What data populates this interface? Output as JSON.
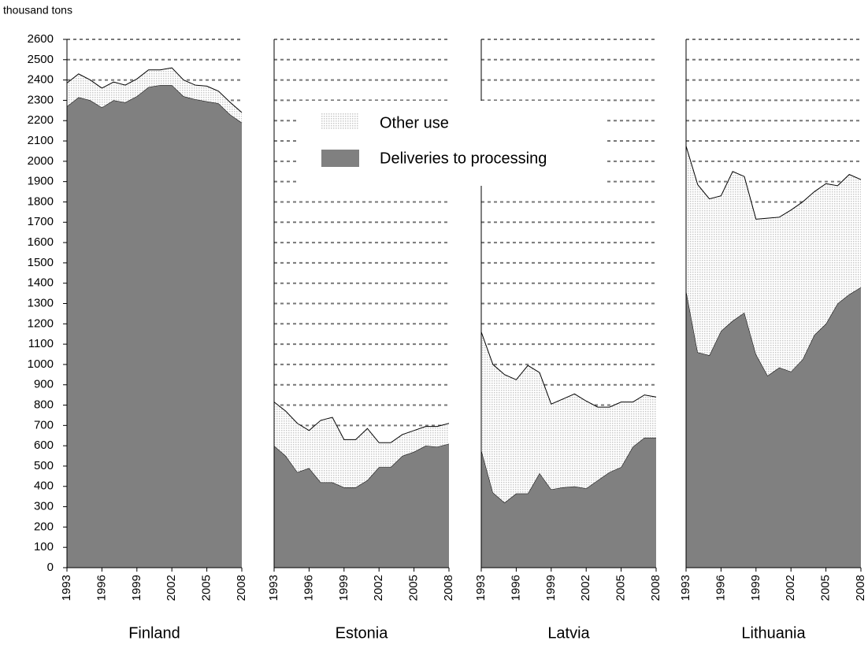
{
  "chart_data": {
    "type": "area",
    "stacked": true,
    "y_label": "thousand tons",
    "x": [
      1993,
      1994,
      1995,
      1996,
      1997,
      1998,
      1999,
      2000,
      2001,
      2002,
      2003,
      2004,
      2005,
      2006,
      2007,
      2008
    ],
    "xticks": [
      1993,
      1996,
      1999,
      2002,
      2005,
      2008
    ],
    "ylim": [
      0,
      2600
    ],
    "yticks": [
      0,
      100,
      200,
      300,
      400,
      500,
      600,
      700,
      800,
      900,
      1000,
      1100,
      1200,
      1300,
      1400,
      1500,
      1600,
      1700,
      1800,
      1900,
      2000,
      2100,
      2200,
      2300,
      2400,
      2500,
      2600
    ],
    "grid": true,
    "series": [
      {
        "name": "Deliveries to processing",
        "color": "#808080"
      },
      {
        "name": "Other use",
        "color": "#c8c8c8"
      }
    ],
    "panels": [
      {
        "title": "Finland",
        "series": [
          {
            "values": [
              2270,
              2315,
              2300,
              2265,
              2300,
              2290,
              2320,
              2365,
              2375,
              2375,
              2320,
              2305,
              2295,
              2285,
              2230,
              2190
            ]
          },
          {
            "values": [
              115,
              115,
              100,
              95,
              90,
              85,
              85,
              85,
              75,
              85,
              80,
              70,
              75,
              60,
              60,
              50
            ]
          }
        ]
      },
      {
        "title": "Estonia",
        "series": [
          {
            "values": [
              600,
              550,
              470,
              490,
              420,
              420,
              395,
              395,
              430,
              495,
              495,
              550,
              570,
              600,
              595,
              610
            ]
          },
          {
            "values": [
              215,
              220,
              240,
              185,
              305,
              320,
              235,
              235,
              255,
              120,
              120,
              105,
              105,
              95,
              100,
              100
            ]
          }
        ]
      },
      {
        "title": "Latvia",
        "series": [
          {
            "values": [
              580,
              370,
              320,
              365,
              365,
              465,
              385,
              395,
              400,
              390,
              430,
              470,
              495,
              595,
              640,
              640
            ]
          },
          {
            "values": [
              580,
              630,
              630,
              560,
              630,
              495,
              420,
              435,
              455,
              430,
              360,
              320,
              320,
              220,
              210,
              200
            ]
          }
        ]
      },
      {
        "title": "Lithuania",
        "series": [
          {
            "values": [
              1365,
              1060,
              1045,
              1165,
              1215,
              1255,
              1050,
              945,
              985,
              965,
              1025,
              1145,
              1200,
              1300,
              1345,
              1380
            ]
          },
          {
            "values": [
              710,
              825,
              770,
              665,
              735,
              670,
              665,
              775,
              740,
              795,
              775,
              705,
              690,
              580,
              590,
              530
            ]
          }
        ]
      }
    ]
  }
}
